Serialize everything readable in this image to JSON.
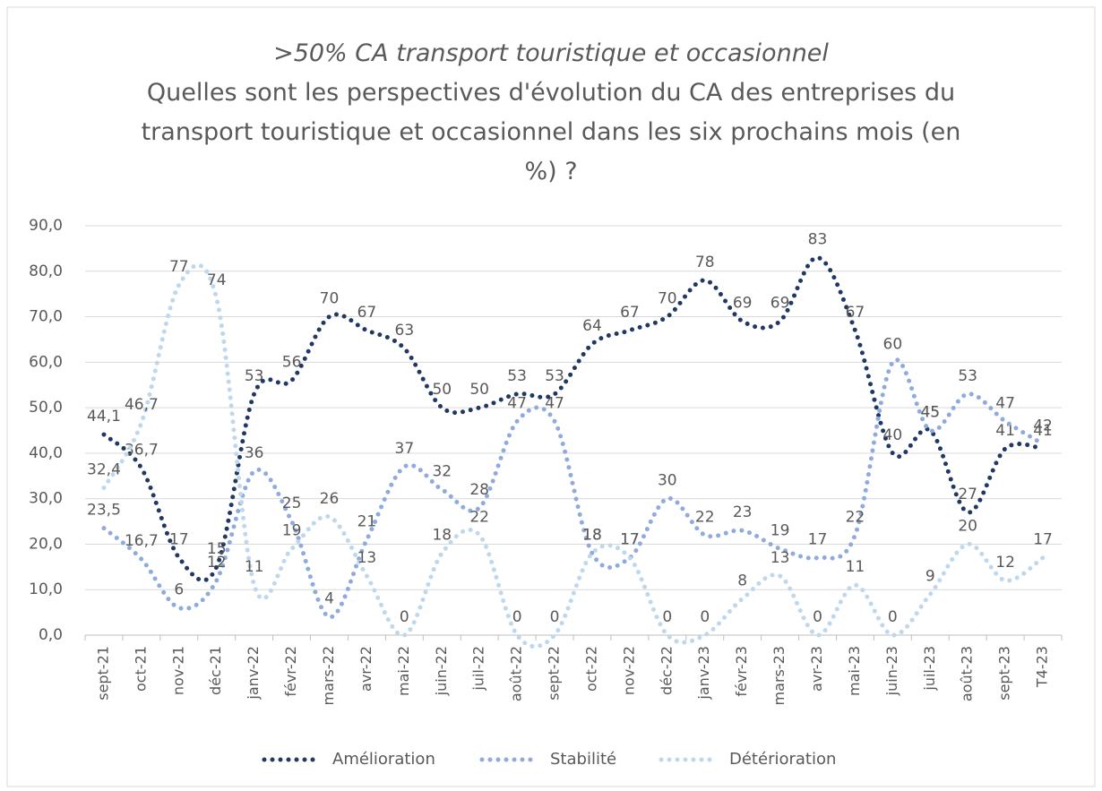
{
  "chart_data": {
    "type": "line",
    "title": ">50% CA transport touristique et occasionnel",
    "subtitle": "Quelles sont les perspectives d'évolution du CA des entreprises du transport touristique et occasionnel dans les six prochains mois (en %) ?",
    "categories": [
      "sept-21",
      "oct-21",
      "nov-21",
      "déc-21",
      "janv-22",
      "févr-22",
      "mars-22",
      "avr-22",
      "mai-22",
      "juin-22",
      "juil-22",
      "août-22",
      "sept-22",
      "oct-22",
      "nov-22",
      "déc-22",
      "janv-23",
      "févr-23",
      "mars-23",
      "avr-23",
      "mai-23",
      "juin-23",
      "juil-23",
      "août-23",
      "sept-23",
      "T4-23"
    ],
    "series": [
      {
        "name": "Amélioration",
        "color": "#1f3864",
        "values": [
          44.1,
          36.7,
          17,
          15,
          53,
          56,
          70,
          67,
          63,
          50,
          50,
          53,
          53,
          64,
          67,
          70,
          78,
          69,
          69,
          83,
          67,
          40,
          45,
          27,
          41,
          41
        ],
        "value_labels": [
          "44,1",
          "36,7",
          "17",
          "15",
          "53",
          "56",
          "70",
          "67",
          "63",
          "50",
          "50",
          "53",
          "53",
          "64",
          "67",
          "70",
          "78",
          "69",
          "69",
          "83",
          "67",
          "40",
          "45",
          "27",
          "41",
          "41"
        ]
      },
      {
        "name": "Stabilité",
        "color": "#8faadc",
        "values": [
          23.5,
          16.7,
          6,
          12,
          36,
          25,
          4,
          21,
          37,
          32,
          28,
          47,
          47,
          18,
          17,
          30,
          22,
          23,
          19,
          17,
          22,
          60,
          45,
          53,
          47,
          42
        ],
        "value_labels": [
          "23,5",
          "16,7",
          "6",
          "12",
          "36",
          "25",
          "4",
          "21",
          "37",
          "32",
          "28",
          "47",
          "47",
          "18",
          "17",
          "30",
          "22",
          "23",
          "19",
          "17",
          "22",
          "60",
          "45",
          "53",
          "47",
          "42"
        ]
      },
      {
        "name": "Détérioration",
        "color": "#bdd7ee",
        "values": [
          32.4,
          46.7,
          77,
          74,
          11,
          19,
          26,
          13,
          0,
          18,
          22,
          0,
          0,
          18,
          17,
          0,
          0,
          8,
          13,
          0,
          11,
          0,
          9,
          20,
          12,
          17
        ],
        "value_labels": [
          "32,4",
          "46,7",
          "77",
          "74",
          "11",
          "19",
          "26",
          "13",
          "0",
          "18",
          "22",
          "0",
          "0",
          "18",
          "17",
          "0",
          "0",
          "8",
          "13",
          "0",
          "11",
          "0",
          "9",
          "20",
          "12",
          "17"
        ]
      }
    ],
    "ylim": [
      0,
      90
    ],
    "yticks": [
      {
        "value": 0,
        "label": "0,0"
      },
      {
        "value": 10,
        "label": "10,0"
      },
      {
        "value": 20,
        "label": "20,0"
      },
      {
        "value": 30,
        "label": "30,0"
      },
      {
        "value": 40,
        "label": "40,0"
      },
      {
        "value": 50,
        "label": "50,0"
      },
      {
        "value": 60,
        "label": "60,0"
      },
      {
        "value": 70,
        "label": "70,0"
      },
      {
        "value": 80,
        "label": "80,0"
      },
      {
        "value": 90,
        "label": "90,0"
      }
    ],
    "grid": true,
    "legend": "bottom"
  }
}
